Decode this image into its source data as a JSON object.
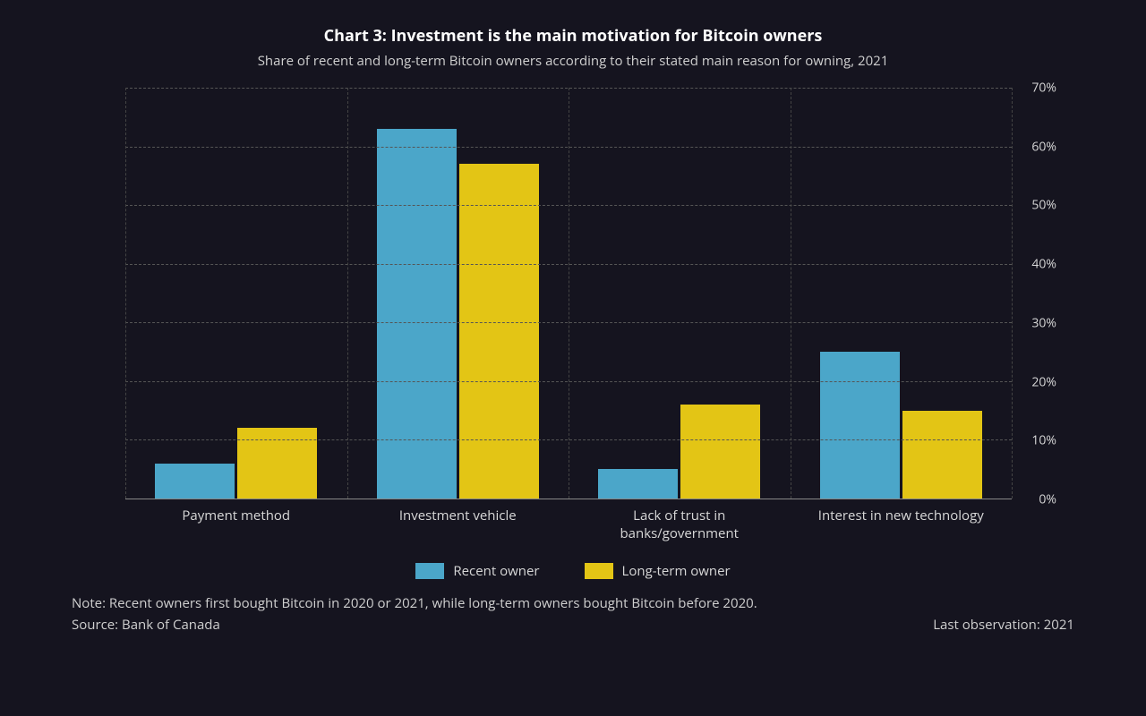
{
  "chart": {
    "type": "bar",
    "title": "Chart 3: Investment is the main motivation for Bitcoin owners",
    "subtitle": "Share of recent and long-term Bitcoin owners according to their stated main reason for owning, 2021",
    "background_color": "#15141f",
    "text_color": "#d8d8d8",
    "title_color": "#ffffff",
    "title_fontsize": 18,
    "subtitle_fontsize": 15,
    "tick_fontsize": 14,
    "categories": [
      "Payment method",
      "Investment vehicle",
      "Lack of trust in\nbanks/government",
      "Interest in new technology"
    ],
    "series": [
      {
        "name": "Recent owner",
        "color": "#4ba6c9",
        "values": [
          6,
          63,
          5,
          25
        ]
      },
      {
        "name": "Long-term owner",
        "color": "#e3c515",
        "values": [
          12,
          57,
          16,
          15
        ]
      }
    ],
    "y_axis": {
      "min": 0,
      "max": 70,
      "step": 10,
      "suffix": "%",
      "position": "right"
    },
    "grid": {
      "horizontal": true,
      "vertical": true,
      "color": "#555555",
      "style": "dashed"
    },
    "baseline_color": "#888888",
    "bar_width_pct": 9.0,
    "bar_gap_pct": 0.3,
    "group_gap_pct": 25.0
  },
  "footer": {
    "note": "Note: Recent owners first bought Bitcoin in 2020 or 2021, while long-term owners bought Bitcoin before 2020.",
    "source": "Source: Bank of Canada",
    "last_observation": "Last observation: 2021"
  }
}
